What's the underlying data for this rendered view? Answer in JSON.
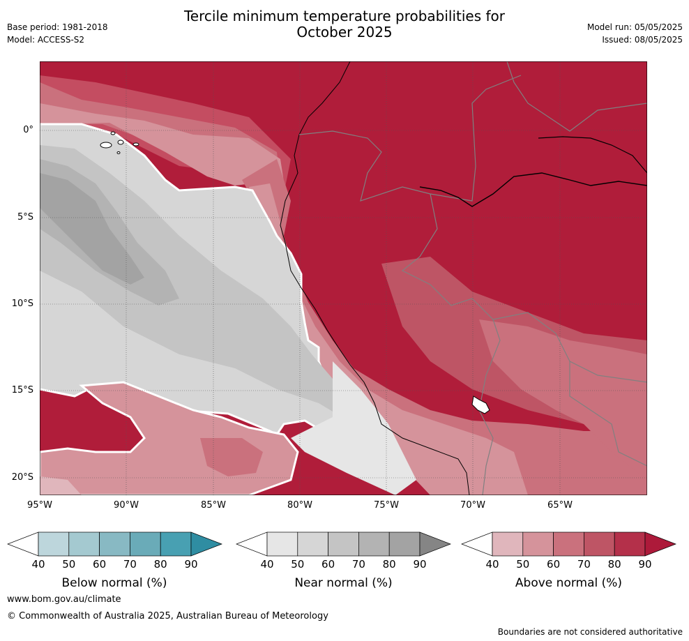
{
  "header": {
    "title_line1": "Tercile minimum temperature probabilities for",
    "title_line2": "October 2025",
    "base_period": "Base period: 1981-2018",
    "model": "Model: ACCESS-S2",
    "model_run": "Model run: 05/05/2025",
    "issued": "Issued: 08/05/2025"
  },
  "map": {
    "lat_labels": [
      "0°",
      "5°S",
      "10°S",
      "15°S",
      "20°S"
    ],
    "lon_labels": [
      "95°W",
      "90°W",
      "85°W",
      "80°W",
      "75°W",
      "70°W",
      "65°W"
    ]
  },
  "colorbars": {
    "ticks": [
      "40",
      "50",
      "60",
      "70",
      "80",
      "90"
    ],
    "below": {
      "title": "Below normal (%)",
      "colors": [
        "#ffffff",
        "#bdd6dc",
        "#a4c9d0",
        "#88b9c3",
        "#6aabb8",
        "#48a0b2",
        "#2f8da2"
      ]
    },
    "near": {
      "title": "Near normal (%)",
      "colors": [
        "#ffffff",
        "#e6e6e6",
        "#d6d6d6",
        "#c4c4c4",
        "#b3b3b3",
        "#a3a3a3",
        "#858585"
      ]
    },
    "above": {
      "title": "Above normal (%)",
      "colors": [
        "#ffffff",
        "#e0b6bc",
        "#d5939b",
        "#ca717d",
        "#be5565",
        "#b4304a",
        "#ad1a3a"
      ]
    }
  },
  "footer": {
    "website": "www.bom.gov.au/climate",
    "copyright": "© Commonwealth of Australia 2025, Australian Bureau of Meteorology",
    "disclaimer": "Boundaries are not considered authoritative"
  }
}
